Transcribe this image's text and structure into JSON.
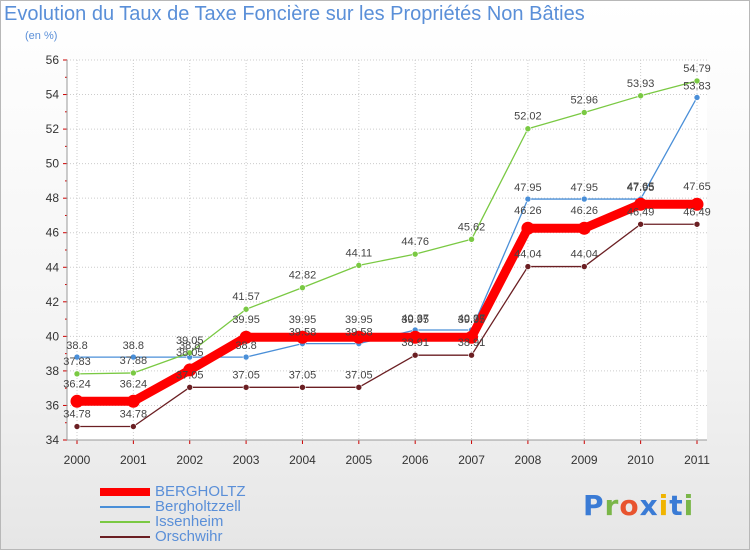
{
  "header": {
    "title": "Evolution du Taux de Taxe Foncière sur les Propriétés Non Bâties",
    "subtitle": "(en %)"
  },
  "colors": {
    "text": "#5a8fd8",
    "grid": "#cccccc",
    "axis_label": "#333333"
  },
  "logo": {
    "letters": [
      "P",
      "r",
      "o",
      "x",
      "i",
      "t",
      "i"
    ],
    "letter_colors": [
      "#3a7bd5",
      "#7ab648",
      "#e8542f",
      "#3a7bd5",
      "#f0b400",
      "#3a7bd5",
      "#7ab648"
    ]
  },
  "chart_data": {
    "type": "line",
    "title": "Evolution du Taux de Taxe Foncière sur les Propriétés Non Bâties",
    "ylabel": "(en %)",
    "ylim": [
      34,
      56
    ],
    "yticks": [
      "34",
      "36",
      "38",
      "40",
      "42",
      "44",
      "46",
      "48",
      "50",
      "52",
      "54",
      "56"
    ],
    "categories": [
      "2000",
      "2001",
      "2002",
      "2003",
      "2004",
      "2005",
      "2006",
      "2007",
      "2008",
      "2009",
      "2010",
      "2011"
    ],
    "grid": true,
    "legend_position": "bottom-left",
    "series": [
      {
        "name": "BERGHOLTZ",
        "color": "#ff0000",
        "values": [
          36.24,
          36.24,
          38.05,
          39.95,
          39.95,
          39.95,
          39.95,
          39.95,
          46.26,
          46.26,
          47.65,
          47.65
        ],
        "labels": [
          "36.24",
          "36.24",
          "38.05",
          "39.95",
          "39.95",
          "39.95",
          "39.95",
          "39.95",
          "46.26",
          "46.26",
          "47.65",
          "47.65"
        ]
      },
      {
        "name": "Bergholtzzell",
        "color": "#4a8fd8",
        "values": [
          38.8,
          38.8,
          38.8,
          38.8,
          39.58,
          39.58,
          40.37,
          40.37,
          47.95,
          47.95,
          47.95,
          53.83
        ],
        "labels": [
          "38.8",
          "38.8",
          "38.8",
          "38.8",
          "39.58",
          "39.58",
          "40.37",
          "40.37",
          "47.95",
          "47.95",
          "47.95",
          "53.83"
        ]
      },
      {
        "name": "Issenheim",
        "color": "#7ac943",
        "values": [
          37.83,
          37.88,
          39.05,
          41.57,
          42.82,
          44.11,
          44.76,
          45.62,
          52.02,
          52.96,
          53.93,
          54.79
        ],
        "labels": [
          "37.83",
          "37.88",
          "39.05",
          "41.57",
          "42.82",
          "44.11",
          "44.76",
          "45.62",
          "52.02",
          "52.96",
          "53.93",
          "54.79"
        ]
      },
      {
        "name": "Orschwihr",
        "color": "#6b1f23",
        "values": [
          34.78,
          34.78,
          37.05,
          37.05,
          37.05,
          37.05,
          38.91,
          38.91,
          44.04,
          44.04,
          46.49,
          46.49
        ],
        "labels": [
          "34.78",
          "34.78",
          "37.05",
          "37.05",
          "37.05",
          "37.05",
          "38.91",
          "38.91",
          "44.04",
          "44.04",
          "46.49",
          "46.49"
        ]
      }
    ]
  }
}
